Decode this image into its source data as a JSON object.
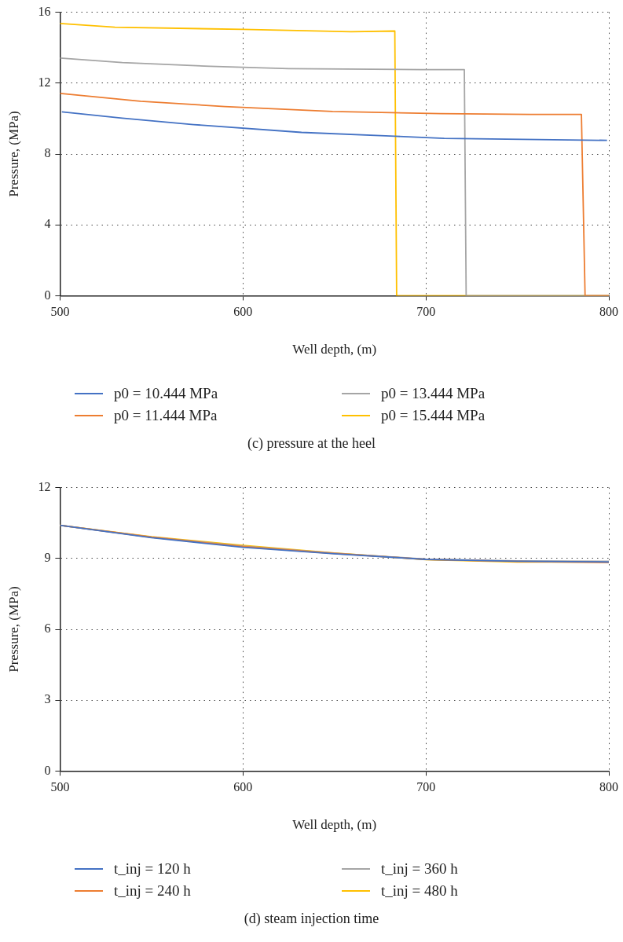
{
  "chart_data": [
    {
      "type": "line",
      "title": "(c) pressure at the heel",
      "xlabel": "Well depth, (m)",
      "ylabel": "Pressure, (MPa)",
      "xlim": [
        500,
        800
      ],
      "xticks": [
        500,
        600,
        700,
        800
      ],
      "ylim": [
        0,
        16
      ],
      "yticks": [
        0,
        4,
        8,
        12,
        16
      ],
      "grid": true,
      "legend": "bottom",
      "marker": "none",
      "series": [
        {
          "name": "p0 = 10.444 MPa",
          "color": "#4472c4",
          "x": [
            501,
            534,
            573,
            632,
            683,
            710,
            799
          ],
          "values": [
            10.38,
            10.02,
            9.66,
            9.22,
            9.0,
            8.88,
            8.77
          ]
        },
        {
          "name": "p0 = 11.444 MPa",
          "color": "#ed7d31",
          "x": [
            500,
            544,
            590,
            649,
            708,
            757,
            785,
            787,
            800
          ],
          "values": [
            11.42,
            10.98,
            10.68,
            10.4,
            10.28,
            10.23,
            10.23,
            0,
            0
          ]
        },
        {
          "name": "p0 = 13.444 MPa",
          "color": "#a5a5a5",
          "x": [
            500,
            534,
            582,
            625,
            698,
            721,
            722,
            800
          ],
          "values": [
            13.42,
            13.16,
            12.95,
            12.82,
            12.76,
            12.76,
            0,
            0
          ]
        },
        {
          "name": "p0 = 15.444 MPa",
          "color": "#ffc000",
          "x": [
            500,
            530,
            600,
            659,
            683,
            684,
            800
          ],
          "values": [
            15.37,
            15.16,
            15.03,
            14.9,
            14.94,
            0,
            0
          ]
        }
      ]
    },
    {
      "type": "line",
      "title": "(d) steam injection time",
      "xlabel": "Well depth, (m)",
      "ylabel": "Pressure, (MPa)",
      "xlim": [
        500,
        800
      ],
      "xticks": [
        500,
        600,
        700,
        800
      ],
      "ylim": [
        0,
        12
      ],
      "yticks": [
        0,
        3,
        6,
        9,
        12
      ],
      "grid": true,
      "legend": "bottom",
      "marker": "none",
      "series": [
        {
          "name": "t_inj = 120 h",
          "color": "#4472c4",
          "x": [
            500,
            550,
            600,
            650,
            700,
            750,
            800
          ],
          "values": [
            10.4,
            9.88,
            9.47,
            9.2,
            8.96,
            8.88,
            8.85
          ]
        },
        {
          "name": "t_inj = 240 h",
          "color": "#ed7d31",
          "x": [
            500,
            550,
            600,
            650,
            700,
            750,
            800
          ],
          "values": [
            10.4,
            9.9,
            9.5,
            9.21,
            8.96,
            8.87,
            8.83
          ]
        },
        {
          "name": "t_inj = 360 h",
          "color": "#a5a5a5",
          "x": [
            500,
            550,
            600,
            650,
            700,
            750,
            800
          ],
          "values": [
            10.4,
            9.9,
            9.52,
            9.22,
            8.97,
            8.9,
            8.88
          ]
        },
        {
          "name": "t_inj = 480 h",
          "color": "#ffc000",
          "x": [
            500,
            550,
            600,
            650,
            700,
            750,
            800
          ],
          "values": [
            10.4,
            9.92,
            9.55,
            9.23,
            8.95,
            8.85,
            8.85
          ]
        }
      ]
    }
  ]
}
